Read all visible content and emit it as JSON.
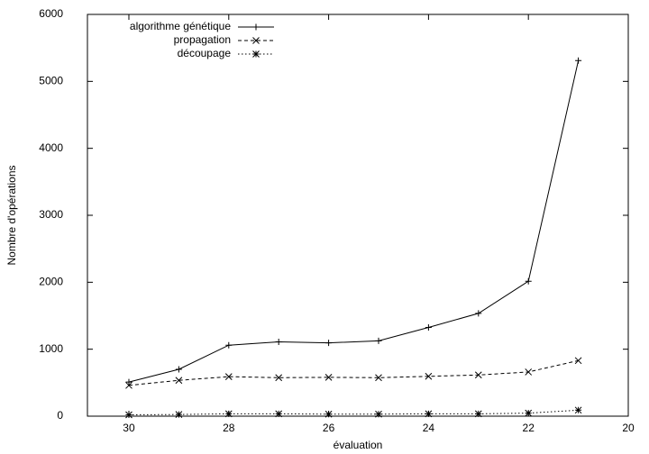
{
  "chart_data": {
    "type": "line",
    "x_label": "évaluation",
    "y_label": "Nombre d'opérations",
    "x": [
      30,
      29,
      28,
      27,
      26,
      25,
      24,
      23,
      22,
      21
    ],
    "xlim": [
      30.83,
      20
    ],
    "xticks": [
      30,
      28,
      26,
      24,
      22,
      20
    ],
    "ylim": [
      0,
      6000
    ],
    "yticks": [
      0,
      1000,
      2000,
      3000,
      4000,
      5000,
      6000
    ],
    "legend": "upper left",
    "series": [
      {
        "name": "algorithme génétique",
        "color": "#000000",
        "dash": "solid",
        "marker": "plus",
        "values": [
          510,
          700,
          1060,
          1110,
          1095,
          1125,
          1325,
          1535,
          2015,
          5310
        ]
      },
      {
        "name": "propagation",
        "color": "#000000",
        "dash": "dashed",
        "marker": "cross",
        "values": [
          460,
          535,
          590,
          575,
          580,
          575,
          595,
          615,
          660,
          830
        ]
      },
      {
        "name": "découpage",
        "color": "#000000",
        "dash": "dotted",
        "marker": "star",
        "values": [
          20,
          25,
          35,
          35,
          30,
          30,
          35,
          35,
          45,
          90
        ]
      }
    ]
  }
}
